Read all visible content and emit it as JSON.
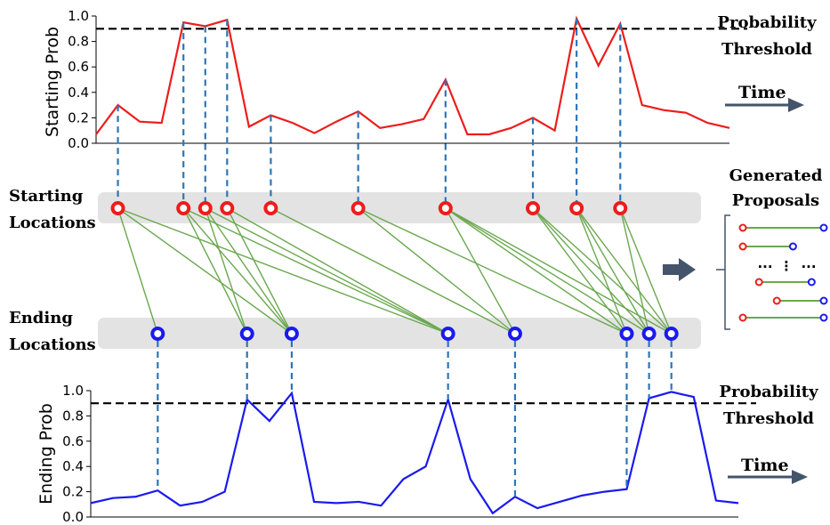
{
  "labels": {
    "start_axis": "Starting Prob",
    "end_axis": "Ending Prob",
    "threshold_top_1": "Probability",
    "threshold_top_2": "Threshold",
    "threshold_bottom_1": "Probability",
    "threshold_bottom_2": "Threshold",
    "time_top": "Time",
    "time_bottom": "Time",
    "starting_1": "Starting",
    "starting_2": "Locations",
    "ending_1": "Ending",
    "ending_2": "Locations",
    "generated_1": "Generated",
    "generated_2": "Proposals",
    "dots_left": "...",
    "dots_mid": "⋮",
    "dots_right": "..."
  },
  "ticks": [
    "0.0",
    "0.2",
    "0.4",
    "0.6",
    "0.8",
    "1.0"
  ],
  "threshold": 0.9,
  "colors": {
    "start": "#ee1c1c",
    "end": "#1a1aee",
    "link": "#6aa84f",
    "drop": "#2e75b6",
    "band": "#e3e3e3",
    "arrow": "#44546a",
    "threshold": "#000000"
  },
  "chart_data": [
    {
      "type": "line",
      "name": "starting",
      "ylabel": "Starting Prob",
      "ylim": [
        0,
        1.0
      ],
      "x": [
        0,
        1,
        2,
        3,
        4,
        5,
        6,
        7,
        8,
        9,
        10,
        11,
        12,
        13,
        14,
        15,
        16,
        17,
        18,
        19,
        20,
        21,
        22,
        23,
        24,
        25,
        26,
        27,
        28,
        29
      ],
      "values": [
        0.07,
        0.3,
        0.17,
        0.16,
        0.95,
        0.92,
        0.97,
        0.13,
        0.22,
        0.16,
        0.08,
        0.17,
        0.25,
        0.12,
        0.15,
        0.19,
        0.5,
        0.07,
        0.07,
        0.12,
        0.2,
        0.1,
        0.98,
        0.61,
        0.94,
        0.3,
        0.26,
        0.24,
        0.16,
        0.12
      ],
      "selected": [
        1,
        4,
        5,
        6,
        8,
        12,
        16,
        20,
        22,
        24
      ]
    },
    {
      "type": "line",
      "name": "ending",
      "ylabel": "Ending Prob",
      "ylim": [
        0,
        1.0
      ],
      "x": [
        0,
        1,
        2,
        3,
        4,
        5,
        6,
        7,
        8,
        9,
        10,
        11,
        12,
        13,
        14,
        15,
        16,
        17,
        18,
        19,
        20,
        21,
        22,
        23,
        24,
        25,
        26,
        27,
        28,
        29
      ],
      "values": [
        0.11,
        0.15,
        0.16,
        0.21,
        0.09,
        0.12,
        0.2,
        0.93,
        0.76,
        0.98,
        0.12,
        0.11,
        0.12,
        0.09,
        0.3,
        0.4,
        0.93,
        0.3,
        0.03,
        0.16,
        0.07,
        0.12,
        0.17,
        0.2,
        0.22,
        0.94,
        0.99,
        0.95,
        0.13,
        0.11
      ],
      "selected": [
        3,
        7,
        9,
        16,
        19,
        24,
        25,
        26
      ]
    }
  ],
  "links": [
    [
      0,
      0
    ],
    [
      0,
      2
    ],
    [
      0,
      3
    ],
    [
      1,
      1
    ],
    [
      1,
      2
    ],
    [
      1,
      3
    ],
    [
      2,
      1
    ],
    [
      2,
      2
    ],
    [
      2,
      3
    ],
    [
      3,
      2
    ],
    [
      3,
      3
    ],
    [
      4,
      4
    ],
    [
      5,
      4
    ],
    [
      5,
      5
    ],
    [
      6,
      4
    ],
    [
      6,
      5
    ],
    [
      6,
      6
    ],
    [
      6,
      7
    ],
    [
      7,
      5
    ],
    [
      7,
      6
    ],
    [
      7,
      7
    ],
    [
      8,
      5
    ],
    [
      8,
      6
    ],
    [
      8,
      7
    ],
    [
      9,
      6
    ],
    [
      9,
      7
    ]
  ],
  "proposals": [
    {
      "start": 0.0,
      "end": 1.0
    },
    {
      "start": 0.0,
      "end": 0.62
    },
    {
      "start": 0.2,
      "end": 0.85
    },
    {
      "start": 0.42,
      "end": 1.0
    },
    {
      "start": 0.0,
      "end": 1.0
    }
  ]
}
